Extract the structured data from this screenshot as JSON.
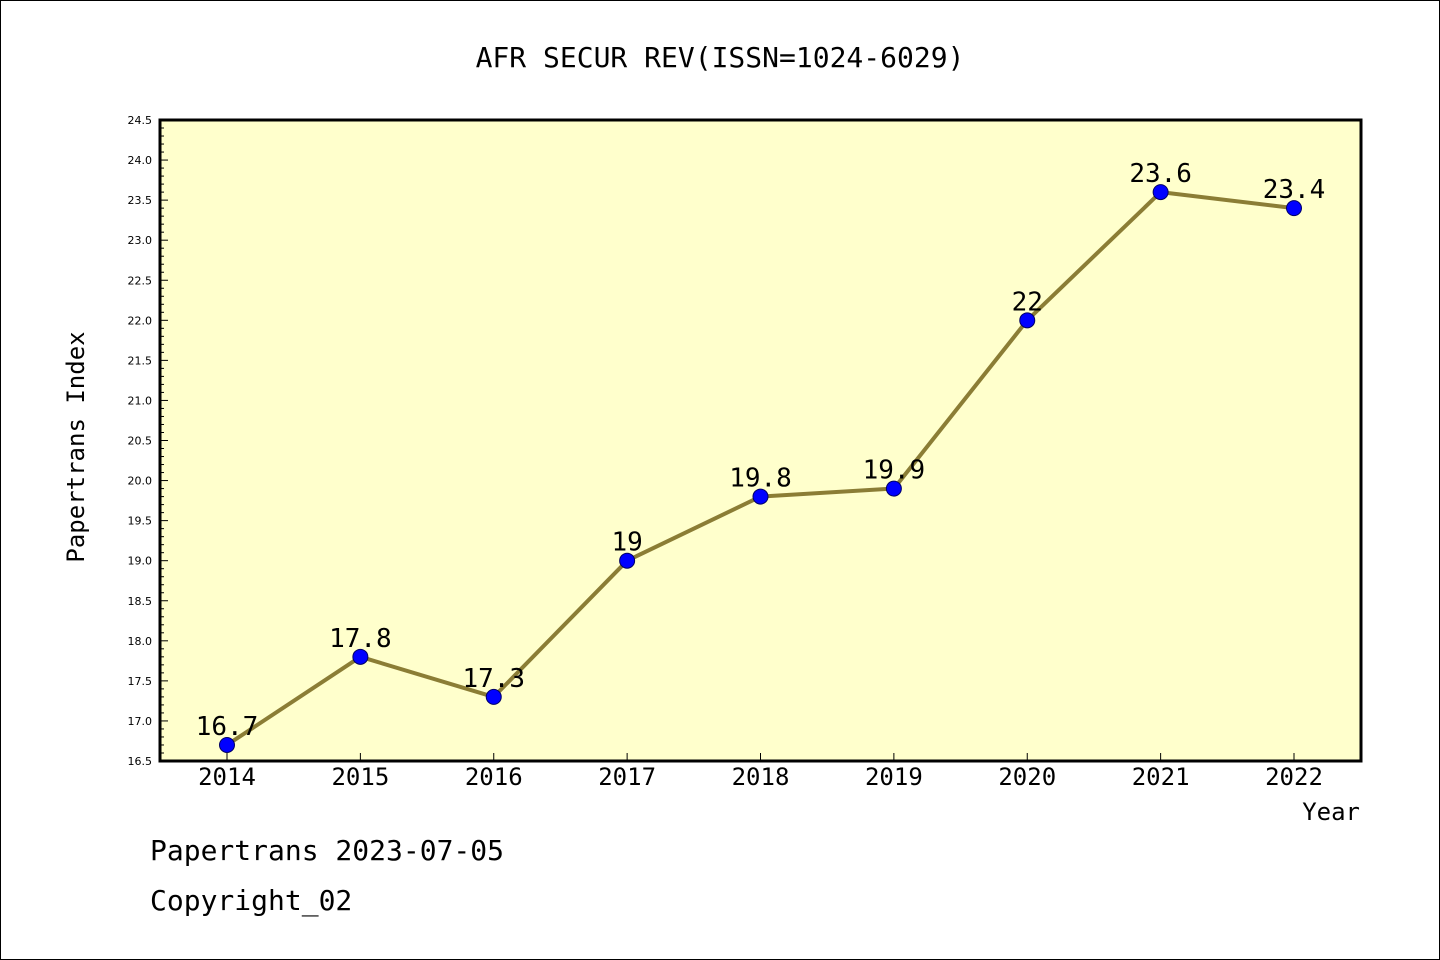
{
  "chart_data": {
    "type": "line",
    "title": "AFR SECUR REV(ISSN=1024-6029)",
    "xlabel": "Year",
    "ylabel": "Papertrans Index",
    "categories": [
      "2014",
      "2015",
      "2016",
      "2017",
      "2018",
      "2019",
      "2020",
      "2021",
      "2022"
    ],
    "series": [
      {
        "values": [
          16.7,
          17.8,
          17.3,
          19.0,
          19.8,
          19.9,
          22.0,
          23.6,
          23.4
        ],
        "labels": [
          "16.7",
          "17.8",
          "17.3",
          "19",
          "19.8",
          "19.9",
          "22",
          "23.6",
          "23.4"
        ]
      }
    ],
    "ylim": [
      16.5,
      24.5
    ],
    "yticks": [
      "16.5",
      "17.0",
      "17.5",
      "18.0",
      "18.5",
      "19.0",
      "19.5",
      "20.0",
      "20.5",
      "21.0",
      "21.5",
      "22.0",
      "22.5",
      "23.0",
      "23.5",
      "24.0",
      "24.5"
    ],
    "grid": false,
    "legend": "none",
    "colors": {
      "plot_background": "#ffffcc",
      "line": "#8b7d35",
      "marker": "#0000ff",
      "marker_edge": "#000066"
    }
  },
  "footer": {
    "date_line": "Papertrans 2023-07-05",
    "copyright_line": "Copyright_02"
  }
}
